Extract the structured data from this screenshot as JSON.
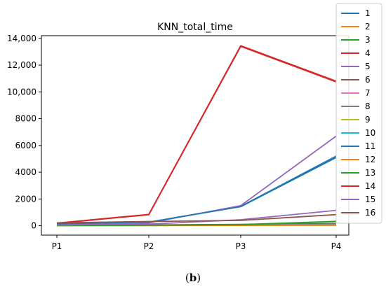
{
  "chart_data": {
    "type": "line",
    "title": "KNN_total_time",
    "xlabel": "",
    "ylabel": "",
    "categories": [
      "P1",
      "P2",
      "P3",
      "P4"
    ],
    "ylim": [
      -700,
      14200
    ],
    "yticks": [
      0,
      2000,
      4000,
      6000,
      8000,
      10000,
      12000,
      14000
    ],
    "ytick_labels": [
      "0",
      "2000",
      "4000",
      "6000",
      "8000",
      "10,000",
      "12,000",
      "14,000"
    ],
    "grid": false,
    "legend_position": "right",
    "series": [
      {
        "name": "1",
        "color": "#1f77b4",
        "values": [
          110,
          260,
          1450,
          5200
        ]
      },
      {
        "name": "2",
        "color": "#ff7f0e",
        "values": [
          20,
          30,
          40,
          60
        ]
      },
      {
        "name": "3",
        "color": "#2ca02c",
        "values": [
          30,
          50,
          90,
          330
        ]
      },
      {
        "name": "4",
        "color": "#d62728",
        "values": [
          200,
          850,
          13450,
          10800
        ]
      },
      {
        "name": "5",
        "color": "#9467bd",
        "values": [
          100,
          210,
          1500,
          6700
        ]
      },
      {
        "name": "6",
        "color": "#8c564b",
        "values": [
          40,
          70,
          100,
          150
        ]
      },
      {
        "name": "7",
        "color": "#e377c2",
        "values": [
          30,
          50,
          70,
          100
        ]
      },
      {
        "name": "8",
        "color": "#7f7f7f",
        "values": [
          20,
          40,
          60,
          90
        ]
      },
      {
        "name": "9",
        "color": "#bcbd22",
        "values": [
          10,
          20,
          30,
          50
        ]
      },
      {
        "name": "10",
        "color": "#17becf",
        "values": [
          10,
          20,
          30,
          40
        ]
      },
      {
        "name": "11",
        "color": "#1f77b4",
        "values": [
          150,
          270,
          1420,
          5100
        ]
      },
      {
        "name": "12",
        "color": "#ff7f0e",
        "values": [
          10,
          15,
          25,
          40
        ]
      },
      {
        "name": "13",
        "color": "#2ca02c",
        "values": [
          20,
          40,
          80,
          300
        ]
      },
      {
        "name": "14",
        "color": "#d62728",
        "values": [
          180,
          820,
          13400,
          10750
        ]
      },
      {
        "name": "15",
        "color": "#9467bd",
        "values": [
          60,
          120,
          450,
          1150
        ]
      },
      {
        "name": "16",
        "color": "#8c564b",
        "values": [
          220,
          320,
          400,
          830
        ]
      }
    ]
  },
  "caption": {
    "open": "(",
    "label": "b",
    "close": ")"
  }
}
